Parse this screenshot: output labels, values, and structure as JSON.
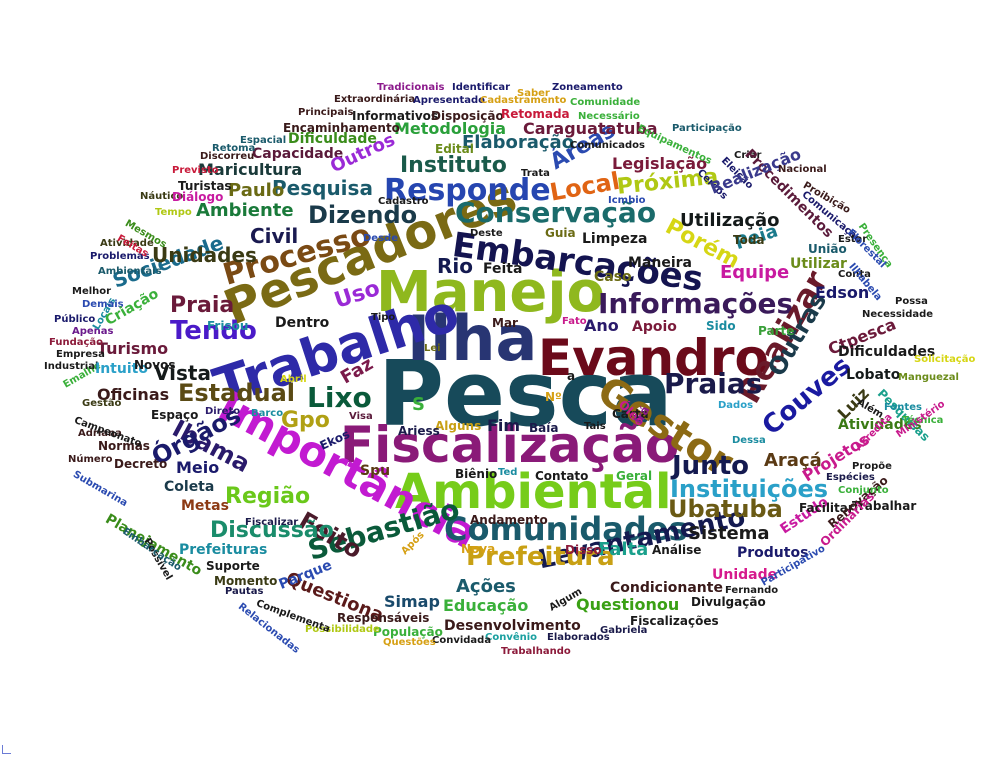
{
  "words": [
    {
      "text": "Pesca",
      "color": "#174a5a"
    },
    {
      "text": "Ilha",
      "color": "#283573"
    },
    {
      "text": "Manejo",
      "color": "#8fb81e"
    },
    {
      "text": "Fiscalização",
      "color": "#8a1a78"
    },
    {
      "text": "Ambiental",
      "color": "#76cc1a"
    },
    {
      "text": "Evandro",
      "color": "#6b0a1a"
    },
    {
      "text": "Trabalho",
      "color": "#2e2aa8"
    },
    {
      "text": "Pescadores",
      "color": "#7a6a14"
    },
    {
      "text": "Importância",
      "color": "#c21ad1"
    },
    {
      "text": "Gestor",
      "color": "#8c6a14"
    },
    {
      "text": "Embarcações",
      "color": "#141450"
    },
    {
      "text": "Comunidades",
      "color": "#1a5a6b"
    },
    {
      "text": "Informações",
      "color": "#3a1a5a"
    },
    {
      "text": "Processo",
      "color": "#7a4a14"
    },
    {
      "text": "Responde",
      "color": "#2646b0"
    },
    {
      "text": "Conservação",
      "color": "#1a6b6b"
    },
    {
      "text": "Instituições",
      "color": "#2aa0c8"
    },
    {
      "text": "Levantamento",
      "color": "#141a50"
    },
    {
      "text": "Sebastião",
      "color": "#0a5a3a"
    },
    {
      "text": "Prefeitura",
      "color": "#c8a014"
    },
    {
      "text": "Realizar",
      "color": "#6a1a2a"
    },
    {
      "text": "Praias",
      "color": "#1a1a4a"
    },
    {
      "text": "Couves",
      "color": "#1a1aa0"
    },
    {
      "text": "Ubatuba",
      "color": "#6a5a14"
    },
    {
      "text": "Junto",
      "color": "#141a50"
    },
    {
      "text": "Feito",
      "color": "#4a1a2a"
    },
    {
      "text": "Região",
      "color": "#6ac81a"
    },
    {
      "text": "Discussão",
      "color": "#1a8c6b"
    },
    {
      "text": "Lixo",
      "color": "#0a5a3a"
    },
    {
      "text": "Estadual",
      "color": "#5a4a14"
    },
    {
      "text": "Ibama",
      "color": "#2a1a6b"
    },
    {
      "text": "Órgãos",
      "color": "#1a1a6b"
    },
    {
      "text": "Dizendo",
      "color": "#1a3a4a"
    },
    {
      "text": "Local",
      "color": "#e06414"
    },
    {
      "text": "Áreas",
      "color": "#2a4ab0"
    },
    {
      "text": "Próxima",
      "color": "#b0c814"
    },
    {
      "text": "Porém",
      "color": "#d6d614"
    },
    {
      "text": "Tendo",
      "color": "#4a1ac8"
    },
    {
      "text": "Praia",
      "color": "#6a1a3a"
    },
    {
      "text": "Sociedade",
      "color": "#1a6b8c"
    },
    {
      "text": "Unidades",
      "color": "#3a3a14"
    },
    {
      "text": "Civil",
      "color": "#1a1a50"
    },
    {
      "text": "Uso",
      "color": "#9a2ad6"
    },
    {
      "text": "Rio",
      "color": "#141a50"
    },
    {
      "text": "Gpo",
      "color": "#b0a014"
    },
    {
      "text": "Vista",
      "color": "#141a1a"
    },
    {
      "text": "Instituto",
      "color": "#1a5a4a"
    },
    {
      "text": "Pesquisa",
      "color": "#1a5a6b"
    },
    {
      "text": "Ambiente",
      "color": "#1a7a3a"
    },
    {
      "text": "Paulo",
      "color": "#6a6a14"
    },
    {
      "text": "Turismo",
      "color": "#6a1a3a"
    },
    {
      "text": "Oficinas",
      "color": "#3a1a1a"
    },
    {
      "text": "Maricultura",
      "color": "#1a3a3a"
    },
    {
      "text": "Capacidade",
      "color": "#5a1a3a"
    },
    {
      "text": "Legislação",
      "color": "#7a1a3a"
    },
    {
      "text": "Metodologia",
      "color": "#2aa03a"
    },
    {
      "text": "Elaboração",
      "color": "#1a5a6b"
    },
    {
      "text": "Caraguatatuba",
      "color": "#6b1a3a"
    },
    {
      "text": "Utilização",
      "color": "#141a1a"
    },
    {
      "text": "Limpeza",
      "color": "#1a1a1a"
    },
    {
      "text": "Equipe",
      "color": "#c81aa0"
    },
    {
      "text": "Peia",
      "color": "#1a7a8c"
    },
    {
      "text": "Edson",
      "color": "#1a1a6b"
    },
    {
      "text": "Outras",
      "color": "#1a3a4a"
    },
    {
      "text": "Ctpesca",
      "color": "#6b1a3a"
    },
    {
      "text": "Dificuldades",
      "color": "#1a1a1a"
    },
    {
      "text": "Lobato",
      "color": "#141a1a"
    },
    {
      "text": "Luiz",
      "color": "#3a3a14"
    },
    {
      "text": "Projetos",
      "color": "#c81a8c"
    },
    {
      "text": "Atividades",
      "color": "#3a7a14"
    },
    {
      "text": "Araçá",
      "color": "#5a3a14"
    },
    {
      "text": "Sistema",
      "color": "#1a1a1a"
    },
    {
      "text": "Falta",
      "color": "#1aa08c"
    },
    {
      "text": "Ações",
      "color": "#1a5a6b"
    },
    {
      "text": "Questiona",
      "color": "#5a1a1a"
    },
    {
      "text": "Questionou",
      "color": "#3aa014"
    },
    {
      "text": "Educação",
      "color": "#3ab03a"
    },
    {
      "text": "Simap",
      "color": "#1a4a6b"
    },
    {
      "text": "Desenvolvimento",
      "color": "#3a1a1a"
    },
    {
      "text": "Condicionante",
      "color": "#3a1a1a"
    },
    {
      "text": "Unidade",
      "color": "#d61a8c"
    },
    {
      "text": "Produtos",
      "color": "#1a1a6b"
    },
    {
      "text": "Estudo",
      "color": "#c81aa0"
    },
    {
      "text": "Prefeituras",
      "color": "#1a8ca0"
    },
    {
      "text": "Planejamento",
      "color": "#3a8c1a"
    },
    {
      "text": "Metas",
      "color": "#8c3a14"
    },
    {
      "text": "Coleta",
      "color": "#1a3a4a"
    },
    {
      "text": "Meio",
      "color": "#1a1a6b"
    },
    {
      "text": "Decreto",
      "color": "#3a1a1a"
    },
    {
      "text": "Normas",
      "color": "#3a1a1a"
    },
    {
      "text": "Faz",
      "color": "#7a1a4a"
    },
    {
      "text": "Fim",
      "color": "#1a1a4a"
    },
    {
      "text": "Baía",
      "color": "#1a1a4a"
    },
    {
      "text": "Mar",
      "color": "#3a1a1a"
    },
    {
      "text": "Ano",
      "color": "#2a1a6b"
    },
    {
      "text": "Apoio",
      "color": "#7a1a3a"
    },
    {
      "text": "Dentro",
      "color": "#1a1a1a"
    },
    {
      "text": "Caso",
      "color": "#6b6b14"
    },
    {
      "text": "Maneira",
      "color": "#1a1a1a"
    },
    {
      "text": "Feita",
      "color": "#1a1a1a"
    },
    {
      "text": "Sido",
      "color": "#1a8ca0"
    },
    {
      "text": "Parte",
      "color": "#3aa03a"
    },
    {
      "text": "Toda",
      "color": "#3a3a14"
    },
    {
      "text": "Guia",
      "color": "#6b6b14"
    },
    {
      "text": "Deste",
      "color": "#1a1a1a"
    },
    {
      "text": "Carta",
      "color": "#1a1a1a"
    },
    {
      "text": "Óleo",
      "color": "#c81a8c"
    },
    {
      "text": "Dados",
      "color": "#2aa0c8"
    },
    {
      "text": "Dessa",
      "color": "#1a8ca0"
    },
    {
      "text": "Irá",
      "color": "#8c1a8c"
    },
    {
      "text": "Ekos",
      "color": "#1a1a6b"
    },
    {
      "text": "Spu",
      "color": "#5a3a14"
    },
    {
      "text": "Visa",
      "color": "#5a1a3a"
    },
    {
      "text": "Alguns",
      "color": "#c8a014"
    },
    {
      "text": "Ariess",
      "color": "#1a1a4a"
    },
    {
      "text": "Tais",
      "color": "#1a1a1a"
    },
    {
      "text": "Biênio",
      "color": "#1a1a1a"
    },
    {
      "text": "Ted",
      "color": "#1a8ca0"
    },
    {
      "text": "Contato",
      "color": "#1a1a1a"
    },
    {
      "text": "Geral",
      "color": "#3ab03a"
    },
    {
      "text": "Andamento",
      "color": "#3a1a1a"
    },
    {
      "text": "Nova",
      "color": "#d6a014"
    },
    {
      "text": "Após",
      "color": "#d6a014"
    },
    {
      "text": "Disso",
      "color": "#8c1a3a"
    },
    {
      "text": "Análise",
      "color": "#1a1a1a"
    },
    {
      "text": "Fernando",
      "color": "#1a1a1a"
    },
    {
      "text": "Facilitar",
      "color": "#1a1a1a"
    },
    {
      "text": "Trabalhar",
      "color": "#1a1a1a"
    },
    {
      "text": "Renovação",
      "color": "#3a1a1a"
    },
    {
      "text": "Ordinárias",
      "color": "#c81a8c"
    },
    {
      "text": "Participativo",
      "color": "#2a4ab0"
    },
    {
      "text": "Divulgação",
      "color": "#1a1a1a"
    },
    {
      "text": "Fiscalizações",
      "color": "#1a1a1a"
    },
    {
      "text": "Gabriela",
      "color": "#1a1a4a"
    },
    {
      "text": "Elaborados",
      "color": "#1a1a4a"
    },
    {
      "text": "Algum",
      "color": "#1a1a1a"
    },
    {
      "text": "Convênio",
      "color": "#1aa0a0"
    },
    {
      "text": "Trabalhando",
      "color": "#8c1a3a"
    },
    {
      "text": "Convidada",
      "color": "#1a1a1a"
    },
    {
      "text": "População",
      "color": "#3ab03a"
    },
    {
      "text": "Questões",
      "color": "#d6a014"
    },
    {
      "text": "Responsáveis",
      "color": "#3a1a1a"
    },
    {
      "text": "Possibilidade",
      "color": "#b0c814"
    },
    {
      "text": "Complementa",
      "color": "#1a1a1a"
    },
    {
      "text": "Relacionadas",
      "color": "#2a4ab0"
    },
    {
      "text": "Pautas",
      "color": "#1a1a4a"
    },
    {
      "text": "Parque",
      "color": "#2a4ab0"
    },
    {
      "text": "Momento",
      "color": "#3a3a14"
    },
    {
      "text": "Suporte",
      "color": "#1a1a1a"
    },
    {
      "text": "Fiscalizar",
      "color": "#1a1a4a"
    },
    {
      "text": "Possível",
      "color": "#1a1a1a"
    },
    {
      "text": "Embarcação",
      "color": "#1a5a6b"
    },
    {
      "text": "Submarina",
      "color": "#2a4ab0"
    },
    {
      "text": "Número",
      "color": "#3a1a1a"
    },
    {
      "text": "Adriana",
      "color": "#3a1a1a"
    },
    {
      "text": "Campeonato",
      "color": "#1a1a1a"
    },
    {
      "text": "Gestão",
      "color": "#3a3a14"
    },
    {
      "text": "Emalhe",
      "color": "#3ab03a"
    },
    {
      "text": "Industrial",
      "color": "#1a1a1a"
    },
    {
      "text": "Empresa",
      "color": "#1a1a1a"
    },
    {
      "text": "Fundação",
      "color": "#8c1a3a"
    },
    {
      "text": "Apenas",
      "color": "#6b1a8c"
    },
    {
      "text": "Público",
      "color": "#1a1a6b"
    },
    {
      "text": "Melhor",
      "color": "#1a1a1a"
    },
    {
      "text": "Locais",
      "color": "#1a8ca0"
    },
    {
      "text": "Demais",
      "color": "#2a4ab0"
    },
    {
      "text": "Ambientais",
      "color": "#1a5a6b"
    },
    {
      "text": "Problemas",
      "color": "#1a1a6b"
    },
    {
      "text": "Atividade",
      "color": "#3a3a14"
    },
    {
      "text": "Mesmos",
      "color": "#3a8c1a"
    },
    {
      "text": "Feitas",
      "color": "#c81a3a"
    },
    {
      "text": "Náutico",
      "color": "#3a3a14"
    },
    {
      "text": "Tempo",
      "color": "#b0c814"
    },
    {
      "text": "Diálogo",
      "color": "#c81aa0"
    },
    {
      "text": "Turistas",
      "color": "#1a1a1a"
    },
    {
      "text": "Previsto",
      "color": "#c81a3a"
    },
    {
      "text": "Discorreu",
      "color": "#3a1a1a"
    },
    {
      "text": "Retoma",
      "color": "#1a5a6b"
    },
    {
      "text": "Espacial",
      "color": "#1a5a6b"
    },
    {
      "text": "Encaminhamento",
      "color": "#3a1a1a"
    },
    {
      "text": "Dificuldade",
      "color": "#3a8c1a"
    },
    {
      "text": "Outros",
      "color": "#9a2ad6"
    },
    {
      "text": "Principais",
      "color": "#3a1a1a"
    },
    {
      "text": "Extraordinária",
      "color": "#3a1a1a"
    },
    {
      "text": "Informativos",
      "color": "#1a1a1a"
    },
    {
      "text": "Apresentado",
      "color": "#1a1a6b"
    },
    {
      "text": "Disposição",
      "color": "#3a1a1a"
    },
    {
      "text": "Retomada",
      "color": "#c81a3a"
    },
    {
      "text": "Tradicionais",
      "color": "#8c1a8c"
    },
    {
      "text": "Identificar",
      "color": "#1a1a6b"
    },
    {
      "text": "Saber",
      "color": "#d6a014"
    },
    {
      "text": "Cadastramento",
      "color": "#d6a014"
    },
    {
      "text": "Zoneamento",
      "color": "#1a1a6b"
    },
    {
      "text": "Comunidade",
      "color": "#3ab03a"
    },
    {
      "text": "Necessário",
      "color": "#3ab03a"
    },
    {
      "text": "Participação",
      "color": "#1a5a6b"
    },
    {
      "text": "Equipamentos",
      "color": "#3ab03a"
    },
    {
      "text": "Comunicados",
      "color": "#1a1a1a"
    },
    {
      "text": "Edital",
      "color": "#6b8c1a"
    },
    {
      "text": "Cadastro",
      "color": "#1a1a1a"
    },
    {
      "text": "Icmbio",
      "color": "#2a4ab0"
    },
    {
      "text": "Trata",
      "color": "#1a1a1a"
    },
    {
      "text": "Desde",
      "color": "#2a4ab0"
    },
    {
      "text": "Eleição",
      "color": "#1a1a6b"
    },
    {
      "text": "Cercos",
      "color": "#1a1a6b"
    },
    {
      "text": "Criar",
      "color": "#1a1a1a"
    },
    {
      "text": "Procedimentos",
      "color": "#5a1a3a"
    },
    {
      "text": "Realização",
      "color": "#3a3a8c"
    },
    {
      "text": "Nacional",
      "color": "#3a1a1a"
    },
    {
      "text": "Proibição",
      "color": "#3a1a1a"
    },
    {
      "text": "Comunicação",
      "color": "#1a1a6b"
    },
    {
      "text": "Presença",
      "color": "#3ab03a"
    },
    {
      "text": "Estar",
      "color": "#1a1a1a"
    },
    {
      "text": "Florestal",
      "color": "#2a4ab0"
    },
    {
      "text": "União",
      "color": "#1a5a6b"
    },
    {
      "text": "Utilizar",
      "color": "#6b8c1a"
    },
    {
      "text": "Conta",
      "color": "#1a1a1a"
    },
    {
      "text": "Ilhabela",
      "color": "#2a4ab0"
    },
    {
      "text": "Possa",
      "color": "#1a1a1a"
    },
    {
      "text": "Necessidade",
      "color": "#1a1a1a"
    },
    {
      "text": "Solicitação",
      "color": "#d6d614"
    },
    {
      "text": "Manguezal",
      "color": "#6b8c1a"
    },
    {
      "text": "Pesquisas",
      "color": "#1aa08c"
    },
    {
      "text": "Fontes",
      "color": "#1a8ca0"
    },
    {
      "text": "Além",
      "color": "#1a1a1a"
    },
    {
      "text": "Técnica",
      "color": "#3ab03a"
    },
    {
      "text": "Ministério",
      "color": "#c81a8c"
    },
    {
      "text": "Propõe",
      "color": "#1a1a1a"
    },
    {
      "text": "Espécies",
      "color": "#1a1a4a"
    },
    {
      "text": "Conjunto",
      "color": "#3ab03a"
    },
    {
      "text": "Acredita",
      "color": "#c81a8c"
    },
    {
      "text": "Espaço",
      "color": "#1a1a1a"
    },
    {
      "text": "Direto",
      "color": "#2a1a6b"
    },
    {
      "text": "Barco",
      "color": "#1a8ca0"
    },
    {
      "text": "Abril",
      "color": "#d6d614"
    },
    {
      "text": "Intuito",
      "color": "#2aa0c8"
    },
    {
      "text": "Novos",
      "color": "#1a1a1a"
    },
    {
      "text": "Lei",
      "color": "#6b6b14"
    },
    {
      "text": "Frisou",
      "color": "#1a8ca0"
    },
    {
      "text": "Criação",
      "color": "#3ab03a"
    },
    {
      "text": "Tipo",
      "color": "#1a1a1a"
    },
    {
      "text": "Fato",
      "color": "#c81a8c"
    },
    {
      "text": "Nº",
      "color": "#d6a014"
    },
    {
      "text": "S",
      "color": "#3ab03a"
    },
    {
      "text": "a",
      "color": "#1a1a1a"
    }
  ]
}
